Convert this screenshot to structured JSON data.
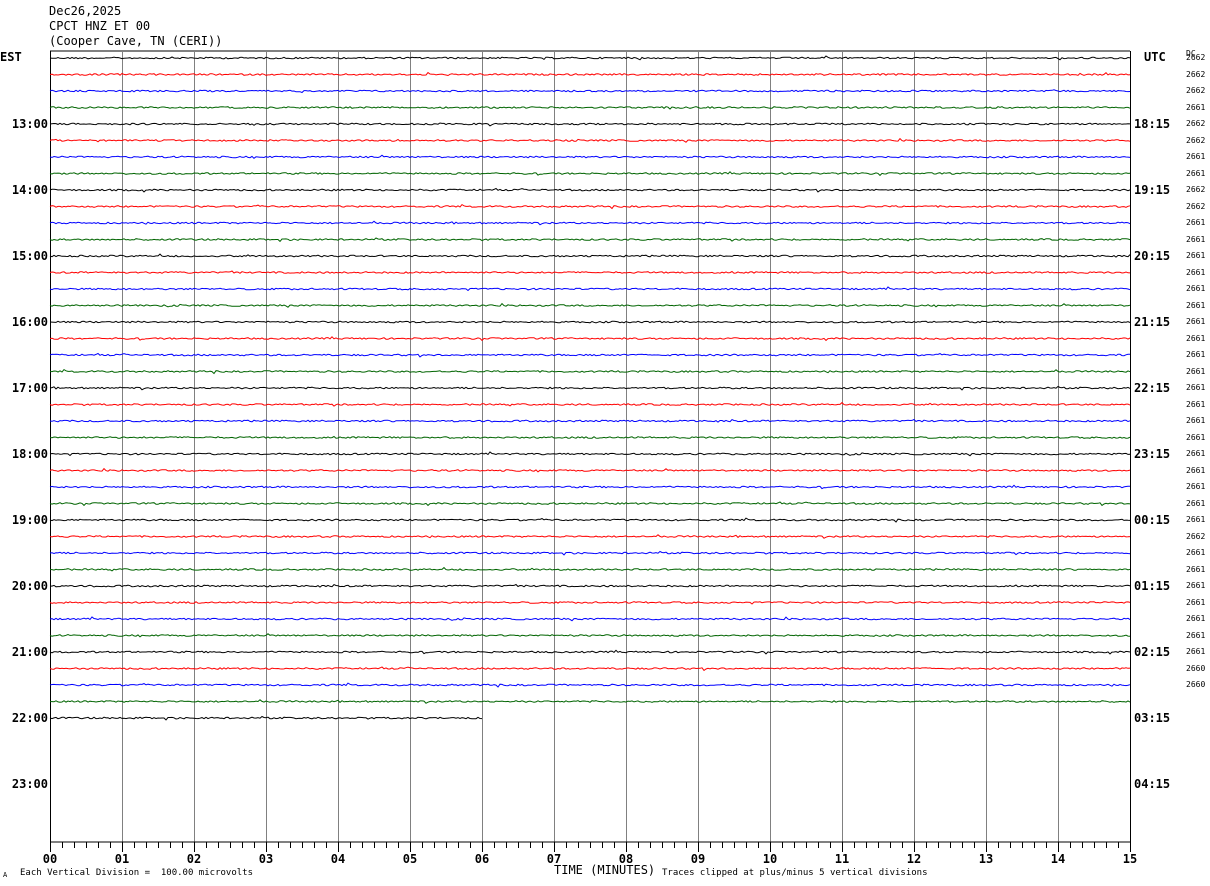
{
  "header": {
    "date": "Dec26,2025",
    "station": "CPCT HNZ ET 00",
    "location": "(Cooper Cave, TN (CERI))"
  },
  "left_timezone": "EST",
  "right_timezone": "UTC",
  "dc_header": "DC",
  "hour_labels_est": [
    "13:00",
    "14:00",
    "15:00",
    "16:00",
    "17:00",
    "18:00",
    "19:00",
    "20:00",
    "21:00",
    "22:00",
    "23:00"
  ],
  "hour_labels_utc": [
    "18:15",
    "19:15",
    "20:15",
    "21:15",
    "22:15",
    "23:15",
    "00:15",
    "01:15",
    "02:15",
    "03:15",
    "04:15"
  ],
  "dc_offsets": [
    "2662",
    "2662",
    "2662",
    "2661",
    "2662",
    "2662",
    "2661",
    "2661",
    "2662",
    "2662",
    "2661",
    "2661",
    "2661",
    "2661",
    "2661",
    "2661",
    "2661",
    "2661",
    "2661",
    "2661",
    "2661",
    "2661",
    "2661",
    "2661",
    "2661",
    "2661",
    "2661",
    "2661",
    "2661",
    "2662",
    "2661",
    "2661",
    "2661",
    "2661",
    "2661",
    "2661",
    "2661",
    "2660",
    "2660"
  ],
  "footer": {
    "scale_note": "Each Vertical Division =  100.00 microvolts",
    "xlabel": "TIME (MINUTES)",
    "clip_note": "Traces clipped at plus/minus 5 vertical divisions",
    "corner_mark": "A"
  },
  "colors": {
    "trace_cycle": [
      "#000000",
      "#ff0000",
      "#0000ff",
      "#006400"
    ],
    "grid": "#808080",
    "axis": "#000000"
  },
  "chart_data": {
    "type": "helicorder",
    "title": "CPCT HNZ ET 00",
    "xlabel": "TIME (MINUTES)",
    "x_ticks": [
      "00",
      "01",
      "02",
      "03",
      "04",
      "05",
      "06",
      "07",
      "08",
      "09",
      "10",
      "11",
      "12",
      "13",
      "14",
      "15"
    ],
    "xlim": [
      0,
      15
    ],
    "trace_minutes": 15,
    "trace_count": 41,
    "last_trace_end_minute": 6,
    "rows_before_first_label": 4,
    "traces_per_hour": 4,
    "amplitude_units": "microvolts",
    "vertical_division_microvolts": 100.0,
    "clip_divisions": 5,
    "grid": true
  }
}
